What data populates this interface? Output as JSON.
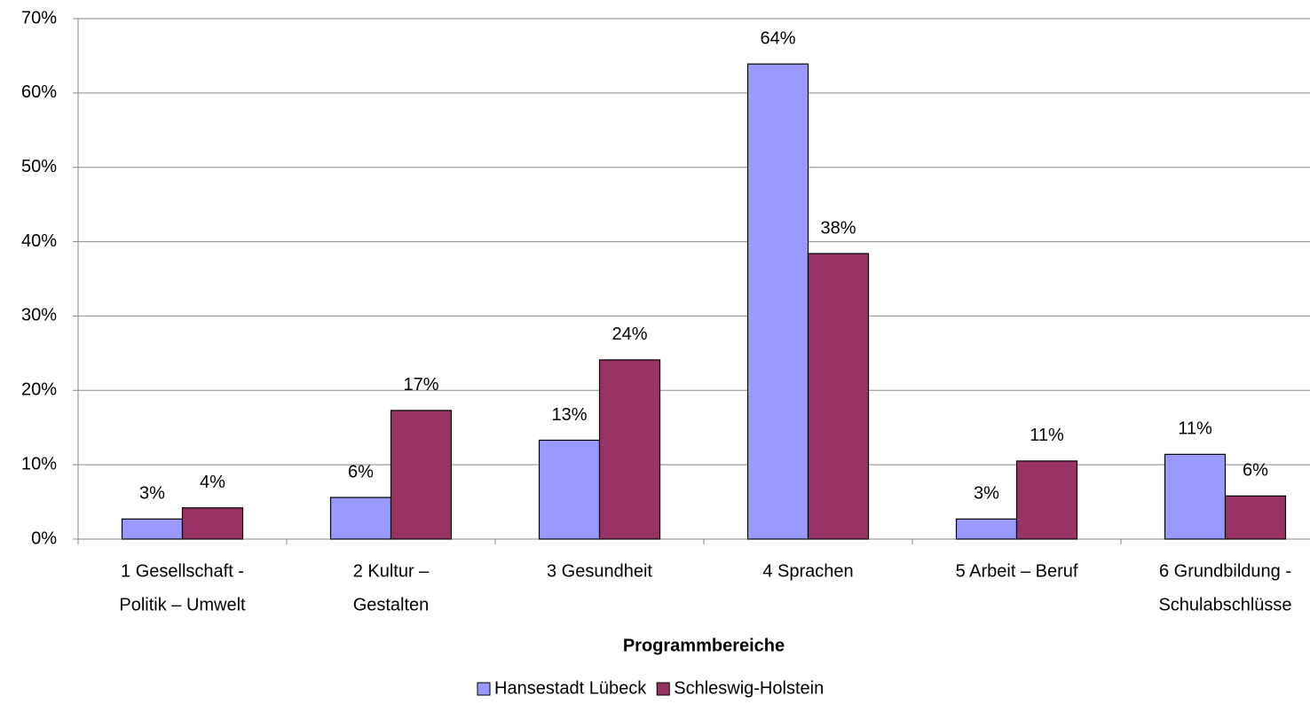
{
  "chart_data": {
    "type": "bar",
    "x_label": "Programmbereiche",
    "categories": [
      [
        "1 Gesellschaft -",
        "Politik – Umwelt"
      ],
      [
        "2 Kultur –",
        "Gestalten"
      ],
      [
        "3 Gesundheit"
      ],
      [
        "4 Sprachen"
      ],
      [
        "5 Arbeit – Beruf"
      ],
      [
        "6 Grundbildung -",
        "Schulabschlüsse"
      ]
    ],
    "series": [
      {
        "name": "Hansestadt Lübeck",
        "color": "#9999ff",
        "values": [
          2.7,
          5.6,
          13.3,
          63.9,
          2.7,
          11.4
        ],
        "value_labels": [
          "3%",
          "6%",
          "13%",
          "64%",
          "3%",
          "11%"
        ]
      },
      {
        "name": "Schleswig-Holstein",
        "color": "#993366",
        "values": [
          4.2,
          17.3,
          24.1,
          38.4,
          10.5,
          5.8
        ],
        "value_labels": [
          "4%",
          "17%",
          "24%",
          "38%",
          "11%",
          "6%"
        ]
      }
    ],
    "ylim": [
      0,
      70
    ],
    "yticks": [
      {
        "value": 0,
        "label": "0%"
      },
      {
        "value": 10,
        "label": "10%"
      },
      {
        "value": 20,
        "label": "20%"
      },
      {
        "value": 30,
        "label": "30%"
      },
      {
        "value": 40,
        "label": "40%"
      },
      {
        "value": 50,
        "label": "50%"
      },
      {
        "value": 60,
        "label": "60%"
      },
      {
        "value": 70,
        "label": "70%"
      }
    ],
    "grid": true,
    "legend": "bottom"
  }
}
